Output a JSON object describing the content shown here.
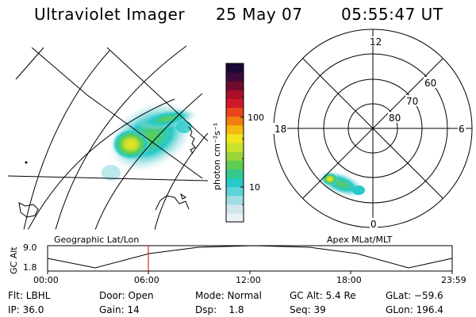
{
  "header": {
    "title": "Ultraviolet Imager",
    "date": "25 May 07",
    "time": "05:55:47 UT"
  },
  "colorbar": {
    "label": "photon cm⁻²s⁻¹",
    "tick_high": "100",
    "tick_low": "10",
    "colors_bottom_to_top": [
      "#e8f1f4",
      "#cfe6ea",
      "#9fdde3",
      "#5fd3da",
      "#27c9c9",
      "#33c98c",
      "#5fcd4f",
      "#9ad63a",
      "#cbe12c",
      "#f1e51d",
      "#f7b80f",
      "#f27d10",
      "#e8461a",
      "#d1182a",
      "#a80f2b",
      "#6e0a2e",
      "#3d0a3a",
      "#1a0838"
    ]
  },
  "geographic_panel": {
    "label": "Geographic Lat/Lon"
  },
  "polar_panel": {
    "label": "Apex MLat/MLT",
    "mlt_labels": {
      "top": "12",
      "left": "18",
      "right": "6",
      "bottom": "0"
    },
    "lat_labels": [
      "60",
      "70",
      "80"
    ]
  },
  "timeline": {
    "ylabel": "GC Alt",
    "y_ticks": [
      "9.0",
      "1.8"
    ],
    "x_ticks": [
      "00:00",
      "06:00",
      "12:00",
      "18:00",
      "23:59"
    ],
    "marker_color": "#dd0000"
  },
  "status": {
    "flt": "Flt: LBHL",
    "ip": "IP: 36.0",
    "door": "Door: Open",
    "gain": "Gain: 14",
    "mode": "Mode: Normal",
    "dsp": "Dsp:    1.8",
    "gc_alt": "GC Alt: 5.4 Re",
    "seq": "Seq: 39",
    "glat": "GLat: −59.6",
    "glon": "GLon: 196.4"
  }
}
